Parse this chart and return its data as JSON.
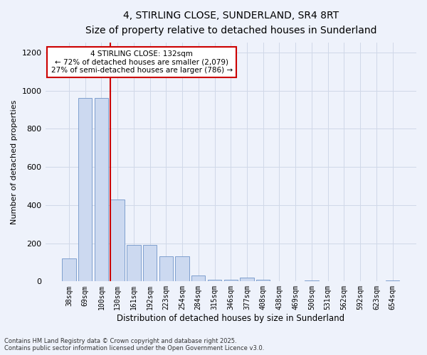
{
  "title_line1": "4, STIRLING CLOSE, SUNDERLAND, SR4 8RT",
  "title_line2": "Size of property relative to detached houses in Sunderland",
  "xlabel": "Distribution of detached houses by size in Sunderland",
  "ylabel": "Number of detached properties",
  "categories": [
    "38sqm",
    "69sqm",
    "100sqm",
    "130sqm",
    "161sqm",
    "192sqm",
    "223sqm",
    "254sqm",
    "284sqm",
    "315sqm",
    "346sqm",
    "377sqm",
    "408sqm",
    "438sqm",
    "469sqm",
    "500sqm",
    "531sqm",
    "562sqm",
    "592sqm",
    "623sqm",
    "654sqm"
  ],
  "values": [
    120,
    960,
    960,
    430,
    190,
    190,
    130,
    130,
    30,
    10,
    10,
    20,
    10,
    0,
    0,
    5,
    0,
    0,
    0,
    0,
    5
  ],
  "bar_color": "#ccd9f0",
  "bar_edge_color": "#7094c8",
  "grid_color": "#d0d8e8",
  "background_color": "#eef2fb",
  "annotation_box_color": "#cc0000",
  "property_line_color": "#cc0000",
  "property_bin_index": 3,
  "annotation_title": "4 STIRLING CLOSE: 132sqm",
  "annotation_line1": "← 72% of detached houses are smaller (2,079)",
  "annotation_line2": "27% of semi-detached houses are larger (786) →",
  "footer_line1": "Contains HM Land Registry data © Crown copyright and database right 2025.",
  "footer_line2": "Contains public sector information licensed under the Open Government Licence v3.0.",
  "ylim": [
    0,
    1250
  ],
  "yticks": [
    0,
    200,
    400,
    600,
    800,
    1000,
    1200
  ]
}
